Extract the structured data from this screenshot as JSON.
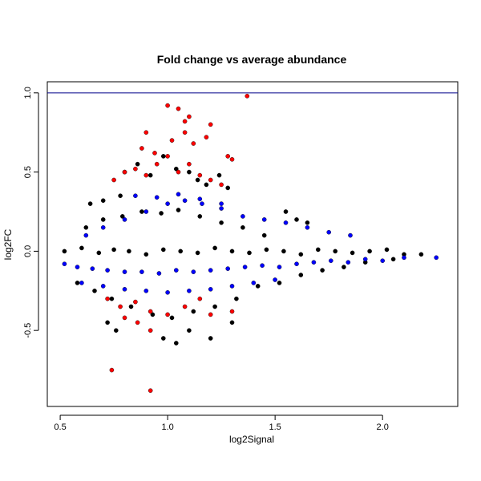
{
  "chart_data": {
    "type": "scatter",
    "title": "Fold change vs average abundance",
    "xlabel": "log2Signal",
    "ylabel": "log2FC",
    "xlim": [
      0.44,
      2.35
    ],
    "ylim": [
      -0.98,
      1.07
    ],
    "x_ticks": [
      0.5,
      1.0,
      1.5,
      2.0
    ],
    "x_tick_labels": [
      "0.5",
      "1.0",
      "1.5",
      "2.0"
    ],
    "y_ticks": [
      -0.5,
      0.0,
      0.5,
      1.0
    ],
    "y_tick_labels": [
      "-0.5",
      "0.0",
      "0.5",
      "1.0"
    ],
    "hline": 1.0,
    "grid": false,
    "colors": {
      "black": "#000000",
      "blue": "#0000ff",
      "red": "#ff0000",
      "hline": "#00008b"
    },
    "series": [
      {
        "color": "black",
        "x": [
          0.52,
          0.6,
          0.68,
          0.75,
          0.82,
          0.9,
          0.98,
          1.06,
          1.14,
          1.22,
          1.3,
          1.38,
          1.46,
          1.54,
          1.62,
          1.7,
          1.78,
          1.86,
          1.94,
          2.02,
          2.1,
          2.18,
          0.62,
          0.7,
          0.79,
          0.88,
          0.97,
          1.05,
          1.15,
          1.25,
          1.35,
          1.45,
          0.58,
          0.66,
          0.74,
          0.83,
          0.93,
          1.02,
          1.12,
          1.22,
          1.32,
          1.42,
          1.52,
          1.62,
          1.72,
          1.82,
          1.92,
          2.05,
          0.8,
          0.86,
          0.92,
          0.98,
          1.04,
          1.1,
          1.14,
          1.18,
          1.24,
          1.28,
          0.64,
          0.7,
          0.78,
          1.55,
          1.6,
          1.65,
          0.72,
          0.76,
          0.98,
          1.04,
          1.1,
          1.2,
          1.3
        ],
        "y": [
          0.0,
          0.02,
          -0.01,
          0.01,
          0.0,
          -0.02,
          0.01,
          0.0,
          -0.01,
          0.02,
          0.0,
          -0.01,
          0.01,
          0.0,
          -0.02,
          0.01,
          0.0,
          -0.01,
          0.0,
          0.01,
          -0.02,
          -0.02,
          0.15,
          0.2,
          0.22,
          0.25,
          0.24,
          0.26,
          0.22,
          0.18,
          0.15,
          0.1,
          -0.2,
          -0.25,
          -0.3,
          -0.35,
          -0.4,
          -0.42,
          -0.38,
          -0.35,
          -0.3,
          -0.22,
          -0.2,
          -0.15,
          -0.12,
          -0.1,
          -0.07,
          -0.05,
          0.5,
          0.55,
          0.48,
          0.6,
          0.52,
          0.5,
          0.45,
          0.42,
          0.48,
          0.4,
          0.3,
          0.32,
          0.35,
          0.25,
          0.2,
          0.18,
          -0.45,
          -0.5,
          -0.55,
          -0.58,
          -0.5,
          -0.55,
          -0.45
        ]
      },
      {
        "color": "blue",
        "x": [
          0.52,
          0.58,
          0.65,
          0.72,
          0.8,
          0.88,
          0.96,
          1.04,
          1.12,
          1.2,
          1.28,
          1.36,
          1.44,
          1.52,
          1.6,
          1.68,
          1.76,
          1.84,
          1.92,
          2.0,
          2.1,
          2.25,
          0.62,
          0.7,
          0.8,
          0.9,
          1.0,
          1.08,
          1.16,
          1.25,
          1.35,
          1.45,
          1.55,
          1.65,
          1.75,
          1.85,
          0.85,
          0.95,
          1.05,
          1.15,
          1.25,
          0.6,
          0.7,
          0.8,
          0.9,
          1.0,
          1.1,
          1.2,
          1.3,
          1.4,
          1.5
        ],
        "y": [
          -0.08,
          -0.1,
          -0.11,
          -0.12,
          -0.13,
          -0.13,
          -0.14,
          -0.12,
          -0.13,
          -0.12,
          -0.11,
          -0.1,
          -0.09,
          -0.1,
          -0.08,
          -0.07,
          -0.06,
          -0.07,
          -0.05,
          -0.06,
          -0.04,
          -0.04,
          0.1,
          0.15,
          0.2,
          0.25,
          0.3,
          0.32,
          0.3,
          0.27,
          0.22,
          0.2,
          0.18,
          0.15,
          0.12,
          0.1,
          0.35,
          0.34,
          0.36,
          0.33,
          0.3,
          -0.2,
          -0.22,
          -0.24,
          -0.25,
          -0.26,
          -0.25,
          -0.24,
          -0.22,
          -0.2,
          -0.18
        ]
      },
      {
        "color": "red",
        "x": [
          0.75,
          0.8,
          0.85,
          0.9,
          0.95,
          1.0,
          1.05,
          1.1,
          1.15,
          1.2,
          1.25,
          0.88,
          0.94,
          1.02,
          1.08,
          1.12,
          1.18,
          1.05,
          1.1,
          1.2,
          1.28,
          1.3,
          1.37,
          0.9,
          1.0,
          1.08,
          0.72,
          0.78,
          0.85,
          0.92,
          1.0,
          1.08,
          1.15,
          0.8,
          0.86,
          0.92,
          1.2,
          1.3,
          0.74,
          0.92
        ],
        "y": [
          0.45,
          0.5,
          0.52,
          0.48,
          0.55,
          0.6,
          0.5,
          0.55,
          0.48,
          0.45,
          0.42,
          0.65,
          0.62,
          0.7,
          0.75,
          0.68,
          0.72,
          0.9,
          0.85,
          0.8,
          0.6,
          0.58,
          0.98,
          0.75,
          0.92,
          0.82,
          -0.3,
          -0.35,
          -0.32,
          -0.38,
          -0.4,
          -0.35,
          -0.3,
          -0.42,
          -0.45,
          -0.5,
          -0.4,
          -0.38,
          -0.75,
          -0.88
        ]
      }
    ]
  }
}
